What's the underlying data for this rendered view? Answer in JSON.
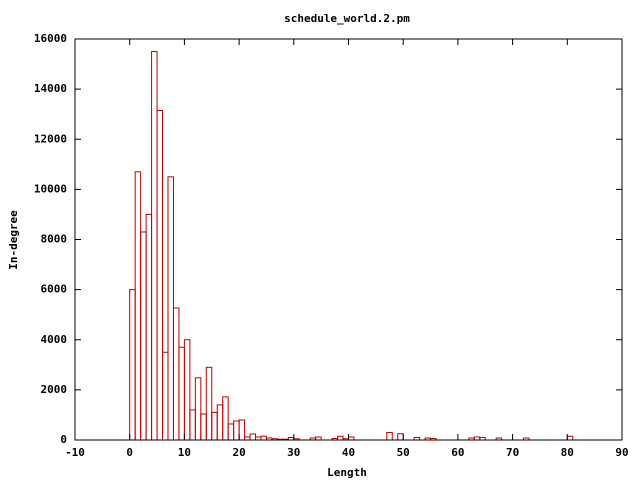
{
  "chart_data": {
    "type": "histogram",
    "title": "schedule_world.2.pm",
    "x_label": "Length",
    "y_label": "In-degree",
    "bins": [
      0,
      1,
      2,
      3,
      4,
      5,
      6,
      7,
      8,
      9,
      10,
      11,
      12,
      13,
      14,
      15,
      16,
      17,
      18,
      19,
      20,
      21,
      22,
      23,
      24,
      25,
      26,
      27,
      28,
      29,
      30,
      31,
      32,
      33,
      34,
      35,
      36,
      37,
      38,
      39,
      40,
      41,
      42,
      43,
      44,
      45,
      46,
      47,
      48,
      49,
      50,
      51,
      52,
      53,
      54,
      55,
      56,
      57,
      58,
      59,
      60,
      61,
      62,
      63,
      64,
      65,
      66,
      67,
      68,
      69,
      70,
      71,
      72,
      73,
      74,
      75,
      76,
      77,
      78,
      79,
      80,
      81
    ],
    "values": [
      6000,
      10700,
      8300,
      9000,
      15500,
      13150,
      3500,
      10500,
      5270,
      3700,
      4000,
      1200,
      2480,
      1040,
      2900,
      1100,
      1400,
      1720,
      640,
      760,
      800,
      120,
      240,
      120,
      150,
      80,
      50,
      30,
      30,
      100,
      50,
      0,
      0,
      80,
      120,
      0,
      0,
      60,
      150,
      50,
      120,
      0,
      0,
      0,
      0,
      0,
      0,
      300,
      0,
      250,
      0,
      0,
      100,
      0,
      80,
      60,
      0,
      0,
      0,
      0,
      0,
      0,
      80,
      120,
      100,
      0,
      0,
      80,
      0,
      0,
      0,
      0,
      80,
      0,
      0,
      0,
      0,
      0,
      0,
      0,
      150
    ],
    "color": "#c00000",
    "xlim": [
      -10,
      90
    ],
    "xticks": [
      -10,
      0,
      10,
      20,
      30,
      40,
      50,
      60,
      70,
      80,
      90
    ],
    "ylim": [
      0,
      16000
    ],
    "yticks": [
      0,
      2000,
      4000,
      6000,
      8000,
      10000,
      12000,
      14000,
      16000
    ]
  }
}
